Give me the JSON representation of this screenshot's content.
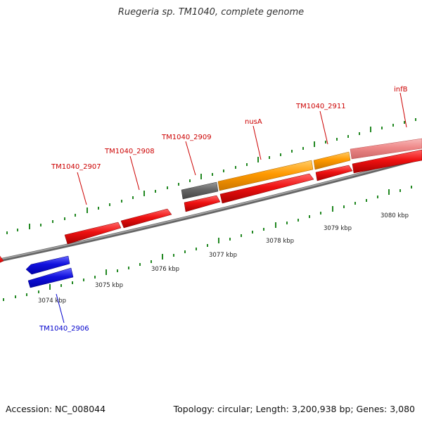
{
  "title": "Ruegeria sp. TM1040, complete genome",
  "footer": {
    "accession": "Accession: NC_008044",
    "summary": "Topology: circular; Length: 3,200,938 bp; Genes: 3,080"
  },
  "colors": {
    "forward_gene": "#ee1111",
    "reverse_gene": "#1111dd",
    "highlight_gene": "#ff9900",
    "other_gene": "#666666",
    "faded_gene": "#ee8888",
    "backbone": "#888888",
    "tick": "#228822",
    "label_forward": "#cc0000",
    "label_reverse": "#0000cc"
  },
  "kbp_ticks": [
    "3074 kbp",
    "3075 kbp",
    "3076 kbp",
    "3077 kbp",
    "3078 kbp",
    "3079 kbp",
    "3080 kbp"
  ],
  "gene_labels": [
    {
      "id": "lbl-2906",
      "text": "TM1040_2906",
      "strand": "reverse"
    },
    {
      "id": "lbl-2907",
      "text": "TM1040_2907",
      "strand": "forward"
    },
    {
      "id": "lbl-2908",
      "text": "TM1040_2908",
      "strand": "forward"
    },
    {
      "id": "lbl-2909",
      "text": "TM1040_2909",
      "strand": "forward"
    },
    {
      "id": "lbl-nusA",
      "text": "nusA",
      "strand": "forward"
    },
    {
      "id": "lbl-2911",
      "text": "TM1040_2911",
      "strand": "forward"
    },
    {
      "id": "lbl-infB",
      "text": "infB",
      "strand": "forward"
    }
  ]
}
